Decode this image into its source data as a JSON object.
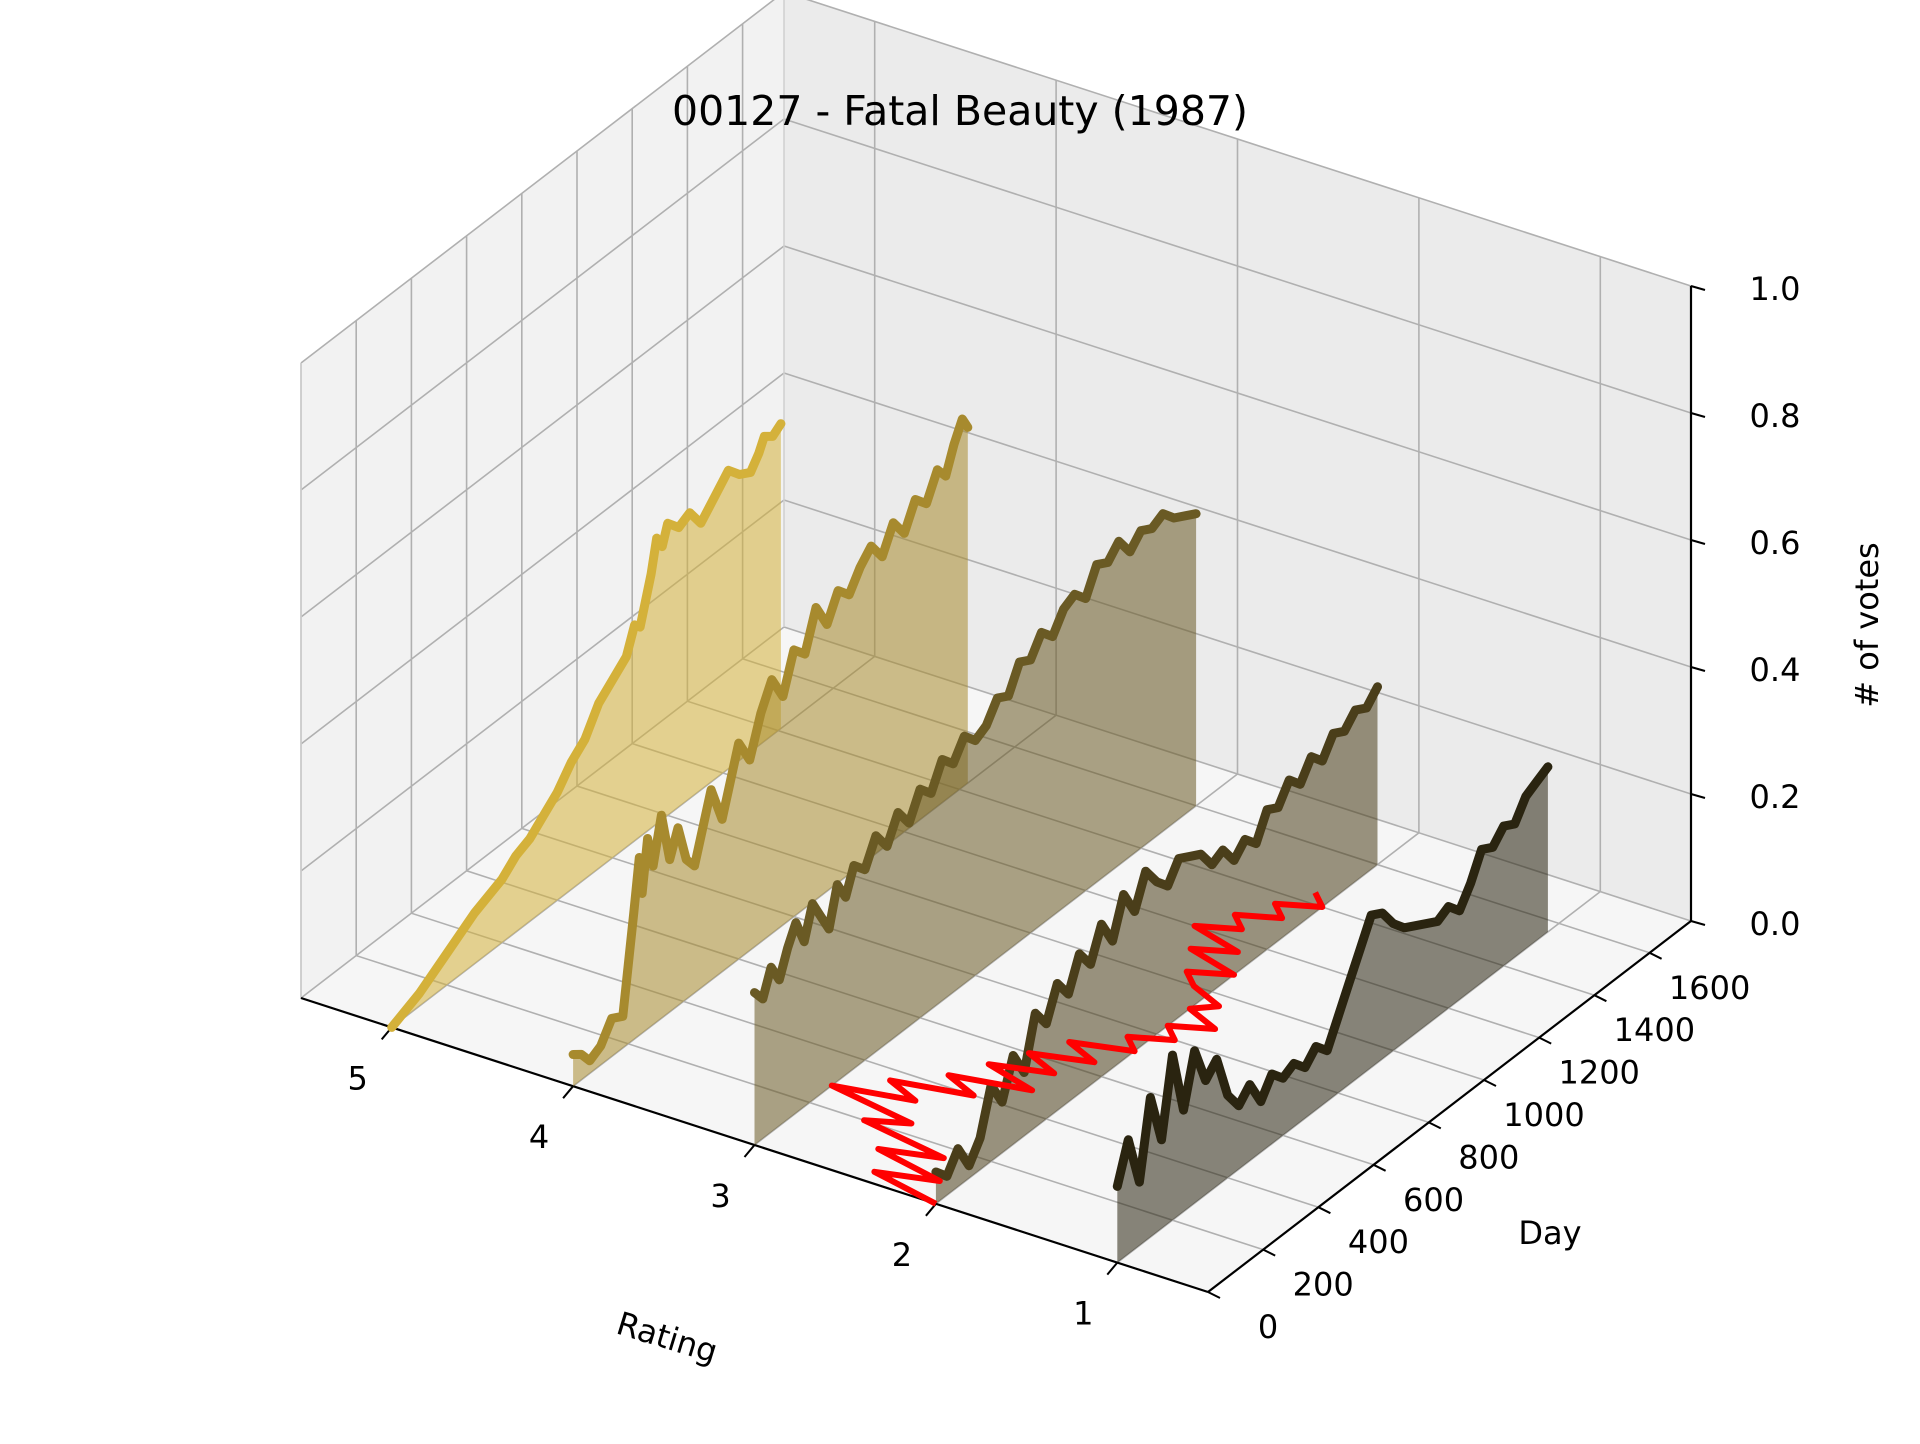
{
  "chart_data": {
    "type": "line",
    "title": "00127 - Fatal Beauty (1987)",
    "xlabel": "Rating",
    "ylabel": "Day",
    "zlabel": "# of votes",
    "x_ticks": [
      "5",
      "4",
      "3",
      "2",
      "1"
    ],
    "y_ticks": [
      "0",
      "200",
      "400",
      "600",
      "800",
      "1000",
      "1200",
      "1400",
      "1600"
    ],
    "z_ticks": [
      "0.0",
      "0.2",
      "0.4",
      "0.6",
      "0.8",
      "1.0"
    ],
    "xlim": [
      0.5,
      5.5
    ],
    "ylim": [
      0,
      1750
    ],
    "zlim": [
      0,
      1
    ],
    "grid": true,
    "series": [
      {
        "rating": 5,
        "color": "#d4b13a",
        "points": [
          [
            0,
            0.0
          ],
          [
            100,
            0.02
          ],
          [
            200,
            0.05
          ],
          [
            300,
            0.08
          ],
          [
            400,
            0.1
          ],
          [
            450,
            0.12
          ],
          [
            500,
            0.13
          ],
          [
            550,
            0.15
          ],
          [
            600,
            0.17
          ],
          [
            650,
            0.2
          ],
          [
            700,
            0.22
          ],
          [
            750,
            0.26
          ],
          [
            800,
            0.28
          ],
          [
            850,
            0.3
          ],
          [
            880,
            0.34
          ],
          [
            900,
            0.33
          ],
          [
            940,
            0.4
          ],
          [
            960,
            0.45
          ],
          [
            980,
            0.43
          ],
          [
            1000,
            0.46
          ],
          [
            1040,
            0.44
          ],
          [
            1080,
            0.45
          ],
          [
            1120,
            0.42
          ],
          [
            1160,
            0.44
          ],
          [
            1200,
            0.46
          ],
          [
            1220,
            0.47
          ],
          [
            1260,
            0.45
          ],
          [
            1300,
            0.44
          ],
          [
            1330,
            0.46
          ],
          [
            1350,
            0.48
          ],
          [
            1380,
            0.47
          ],
          [
            1410,
            0.48
          ]
        ]
      },
      {
        "rating": 4,
        "color": "#a78a2e",
        "points": [
          [
            0,
            0.05
          ],
          [
            30,
            0.04
          ],
          [
            60,
            0.02
          ],
          [
            100,
            0.03
          ],
          [
            140,
            0.06
          ],
          [
            180,
            0.05
          ],
          [
            220,
            0.2
          ],
          [
            240,
            0.28
          ],
          [
            250,
            0.22
          ],
          [
            270,
            0.3
          ],
          [
            290,
            0.25
          ],
          [
            320,
            0.32
          ],
          [
            350,
            0.24
          ],
          [
            380,
            0.28
          ],
          [
            410,
            0.22
          ],
          [
            440,
            0.2
          ],
          [
            470,
            0.25
          ],
          [
            500,
            0.3
          ],
          [
            540,
            0.24
          ],
          [
            570,
            0.29
          ],
          [
            600,
            0.34
          ],
          [
            640,
            0.3
          ],
          [
            680,
            0.36
          ],
          [
            720,
            0.4
          ],
          [
            760,
            0.36
          ],
          [
            800,
            0.42
          ],
          [
            840,
            0.4
          ],
          [
            880,
            0.46
          ],
          [
            920,
            0.42
          ],
          [
            960,
            0.46
          ],
          [
            1000,
            0.44
          ],
          [
            1040,
            0.47
          ],
          [
            1080,
            0.49
          ],
          [
            1120,
            0.46
          ],
          [
            1160,
            0.5
          ],
          [
            1200,
            0.47
          ],
          [
            1240,
            0.51
          ],
          [
            1280,
            0.49
          ],
          [
            1320,
            0.53
          ],
          [
            1350,
            0.51
          ],
          [
            1380,
            0.55
          ],
          [
            1410,
            0.58
          ],
          [
            1430,
            0.56
          ]
        ]
      },
      {
        "rating": 3,
        "color": "#6a5a24",
        "points": [
          [
            0,
            0.24
          ],
          [
            30,
            0.22
          ],
          [
            60,
            0.26
          ],
          [
            90,
            0.23
          ],
          [
            120,
            0.27
          ],
          [
            150,
            0.3
          ],
          [
            180,
            0.26
          ],
          [
            210,
            0.31
          ],
          [
            240,
            0.28
          ],
          [
            270,
            0.25
          ],
          [
            300,
            0.31
          ],
          [
            330,
            0.28
          ],
          [
            360,
            0.32
          ],
          [
            400,
            0.3
          ],
          [
            440,
            0.34
          ],
          [
            480,
            0.31
          ],
          [
            520,
            0.35
          ],
          [
            560,
            0.32
          ],
          [
            600,
            0.36
          ],
          [
            640,
            0.34
          ],
          [
            680,
            0.38
          ],
          [
            720,
            0.36
          ],
          [
            760,
            0.39
          ],
          [
            800,
            0.37
          ],
          [
            840,
            0.38
          ],
          [
            880,
            0.41
          ],
          [
            920,
            0.4
          ],
          [
            960,
            0.44
          ],
          [
            1000,
            0.43
          ],
          [
            1040,
            0.46
          ],
          [
            1080,
            0.44
          ],
          [
            1120,
            0.47
          ],
          [
            1160,
            0.48
          ],
          [
            1200,
            0.46
          ],
          [
            1240,
            0.5
          ],
          [
            1280,
            0.49
          ],
          [
            1320,
            0.51
          ],
          [
            1360,
            0.48
          ],
          [
            1400,
            0.5
          ],
          [
            1440,
            0.49
          ],
          [
            1480,
            0.5
          ],
          [
            1520,
            0.48
          ],
          [
            1560,
            0.47
          ],
          [
            1600,
            0.46
          ]
        ]
      },
      {
        "rating": 2,
        "color": "#4a3e1a",
        "points": [
          [
            0,
            0.05
          ],
          [
            40,
            0.03
          ],
          [
            80,
            0.06
          ],
          [
            120,
            0.02
          ],
          [
            160,
            0.05
          ],
          [
            200,
            0.12
          ],
          [
            240,
            0.08
          ],
          [
            280,
            0.14
          ],
          [
            320,
            0.1
          ],
          [
            360,
            0.18
          ],
          [
            400,
            0.15
          ],
          [
            440,
            0.2
          ],
          [
            480,
            0.17
          ],
          [
            520,
            0.22
          ],
          [
            560,
            0.19
          ],
          [
            600,
            0.24
          ],
          [
            640,
            0.2
          ],
          [
            680,
            0.26
          ],
          [
            720,
            0.22
          ],
          [
            760,
            0.27
          ],
          [
            800,
            0.24
          ],
          [
            840,
            0.22
          ],
          [
            880,
            0.25
          ],
          [
            920,
            0.24
          ],
          [
            960,
            0.23
          ],
          [
            1000,
            0.2
          ],
          [
            1040,
            0.21
          ],
          [
            1080,
            0.18
          ],
          [
            1120,
            0.2
          ],
          [
            1160,
            0.18
          ],
          [
            1200,
            0.22
          ],
          [
            1240,
            0.21
          ],
          [
            1280,
            0.24
          ],
          [
            1320,
            0.22
          ],
          [
            1360,
            0.25
          ],
          [
            1400,
            0.23
          ],
          [
            1440,
            0.26
          ],
          [
            1480,
            0.25
          ],
          [
            1520,
            0.27
          ],
          [
            1560,
            0.26
          ],
          [
            1600,
            0.28
          ]
        ]
      },
      {
        "rating": 1,
        "color": "#2a2410",
        "points": [
          [
            0,
            0.12
          ],
          [
            40,
            0.18
          ],
          [
            80,
            0.1
          ],
          [
            120,
            0.22
          ],
          [
            160,
            0.14
          ],
          [
            200,
            0.26
          ],
          [
            240,
            0.16
          ],
          [
            280,
            0.24
          ],
          [
            320,
            0.18
          ],
          [
            360,
            0.2
          ],
          [
            400,
            0.13
          ],
          [
            440,
            0.1
          ],
          [
            480,
            0.12
          ],
          [
            520,
            0.08
          ],
          [
            560,
            0.11
          ],
          [
            600,
            0.09
          ],
          [
            640,
            0.1
          ],
          [
            680,
            0.08
          ],
          [
            720,
            0.1
          ],
          [
            760,
            0.08
          ],
          [
            800,
            0.12
          ],
          [
            840,
            0.16
          ],
          [
            880,
            0.2
          ],
          [
            920,
            0.24
          ],
          [
            960,
            0.23
          ],
          [
            1000,
            0.2
          ],
          [
            1040,
            0.18
          ],
          [
            1080,
            0.17
          ],
          [
            1120,
            0.16
          ],
          [
            1160,
            0.15
          ],
          [
            1200,
            0.16
          ],
          [
            1240,
            0.14
          ],
          [
            1280,
            0.17
          ],
          [
            1320,
            0.21
          ],
          [
            1360,
            0.2
          ],
          [
            1400,
            0.22
          ],
          [
            1440,
            0.21
          ],
          [
            1480,
            0.24
          ],
          [
            1520,
            0.25
          ],
          [
            1560,
            0.26
          ]
        ]
      }
    ],
    "mean_series": {
      "color": "#ff0000",
      "points": [
        [
          0,
          2.0
        ],
        [
          40,
          2.4
        ],
        [
          80,
          2.1
        ],
        [
          120,
          2.5
        ],
        [
          160,
          2.2
        ],
        [
          200,
          2.7
        ],
        [
          240,
          2.5
        ],
        [
          280,
          3.0
        ],
        [
          320,
          2.6
        ],
        [
          360,
          2.8
        ],
        [
          400,
          2.4
        ],
        [
          440,
          2.6
        ],
        [
          480,
          2.2
        ],
        [
          520,
          2.5
        ],
        [
          560,
          2.2
        ],
        [
          600,
          2.4
        ],
        [
          640,
          2.1
        ],
        [
          680,
          2.3
        ],
        [
          720,
          2.0
        ],
        [
          760,
          2.1
        ],
        [
          800,
          1.9
        ],
        [
          840,
          2.0
        ],
        [
          880,
          1.8
        ],
        [
          920,
          2.0
        ],
        [
          960,
          1.9
        ],
        [
          1000,
          2.1
        ],
        [
          1040,
          2.2
        ],
        [
          1080,
          2.0
        ],
        [
          1120,
          2.3
        ],
        [
          1160,
          2.1
        ],
        [
          1200,
          2.4
        ],
        [
          1240,
          2.2
        ],
        [
          1280,
          2.3
        ],
        [
          1320,
          2.1
        ],
        [
          1360,
          2.2
        ],
        [
          1400,
          2.0
        ],
        [
          1440,
          2.1
        ]
      ]
    }
  }
}
